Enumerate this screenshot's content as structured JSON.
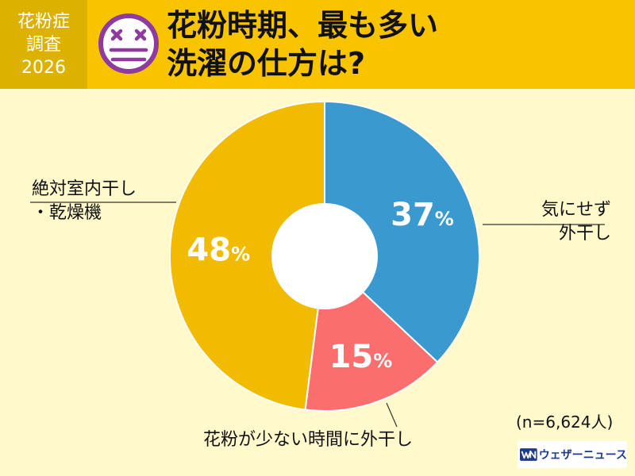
{
  "header": {
    "badge_lines": [
      "花粉症",
      "調査",
      "2026"
    ],
    "title_lines": [
      "花粉時期、最も多い",
      "洗濯の仕方は?"
    ],
    "colors": {
      "bar": "#F8C400",
      "badge": "#DDB100",
      "face": "#8E3A9E"
    }
  },
  "chart_data": {
    "type": "pie",
    "donut": true,
    "categories": [
      "気にせず外干し",
      "花粉が少ない時間に外干し",
      "絶対室内干し・乾燥機"
    ],
    "values": [
      37,
      15,
      48
    ],
    "value_labels": [
      "37%",
      "15%",
      "48%"
    ],
    "category_label_lines": [
      [
        "気にせず",
        "外干し"
      ],
      [
        "花粉が少ない時間に外干し"
      ],
      [
        "絶対室内干し",
        "・乾燥機"
      ]
    ],
    "colors": [
      "#3A9ACF",
      "#FA6E6E",
      "#F0BB00"
    ],
    "legend": "none"
  },
  "footnote": "(n=6,624人)",
  "brand": {
    "name": "ウェザーニュース",
    "logo_icon": "wn-logo-icon"
  }
}
